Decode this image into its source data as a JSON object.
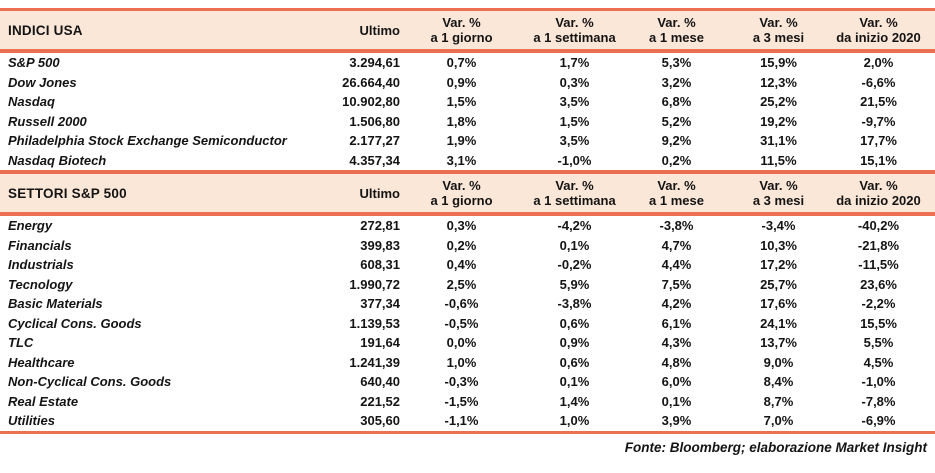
{
  "palette": {
    "accent_line": "#ED6F52",
    "header_band_bg": "#FBE7D8",
    "text": "#141414"
  },
  "column_headers": {
    "ultimo": "Ultimo",
    "var_label": "Var. %",
    "periods": [
      "a 1 giorno",
      "a 1 settimana",
      "a 1 mese",
      "a 3 mesi",
      "da inizio 2020"
    ]
  },
  "sections": [
    {
      "title": "INDICI USA",
      "rows": [
        {
          "name": "S&P 500",
          "ultimo": "3.294,61",
          "vars": [
            "0,7%",
            "1,7%",
            "5,3%",
            "15,9%",
            "2,0%"
          ]
        },
        {
          "name": "Dow Jones",
          "ultimo": "26.664,40",
          "vars": [
            "0,9%",
            "0,3%",
            "3,2%",
            "12,3%",
            "-6,6%"
          ]
        },
        {
          "name": "Nasdaq",
          "ultimo": "10.902,80",
          "vars": [
            "1,5%",
            "3,5%",
            "6,8%",
            "25,2%",
            "21,5%"
          ]
        },
        {
          "name": "Russell 2000",
          "ultimo": "1.506,80",
          "vars": [
            "1,8%",
            "1,5%",
            "5,2%",
            "19,2%",
            "-9,7%"
          ]
        },
        {
          "name": "Philadelphia Stock Exchange Semiconductor",
          "ultimo": "2.177,27",
          "vars": [
            "1,9%",
            "3,5%",
            "9,2%",
            "31,1%",
            "17,7%"
          ]
        },
        {
          "name": "Nasdaq Biotech",
          "ultimo": "4.357,34",
          "vars": [
            "3,1%",
            "-1,0%",
            "0,2%",
            "11,5%",
            "15,1%"
          ]
        }
      ]
    },
    {
      "title": "SETTORI S&P 500",
      "rows": [
        {
          "name": "Energy",
          "ultimo": "272,81",
          "vars": [
            "0,3%",
            "-4,2%",
            "-3,8%",
            "-3,4%",
            "-40,2%"
          ]
        },
        {
          "name": "Financials",
          "ultimo": "399,83",
          "vars": [
            "0,2%",
            "0,1%",
            "4,7%",
            "10,3%",
            "-21,8%"
          ]
        },
        {
          "name": "Industrials",
          "ultimo": "608,31",
          "vars": [
            "0,4%",
            "-0,2%",
            "4,4%",
            "17,2%",
            "-11,5%"
          ]
        },
        {
          "name": "Tecnology",
          "ultimo": "1.990,72",
          "vars": [
            "2,5%",
            "5,9%",
            "7,5%",
            "25,7%",
            "23,6%"
          ]
        },
        {
          "name": "Basic Materials",
          "ultimo": "377,34",
          "vars": [
            "-0,6%",
            "-3,8%",
            "4,2%",
            "17,6%",
            "-2,2%"
          ]
        },
        {
          "name": "Cyclical Cons. Goods",
          "ultimo": "1.139,53",
          "vars": [
            "-0,5%",
            "0,6%",
            "6,1%",
            "24,1%",
            "15,5%"
          ]
        },
        {
          "name": "TLC",
          "ultimo": "191,64",
          "vars": [
            "0,0%",
            "0,9%",
            "4,3%",
            "13,7%",
            "5,5%"
          ]
        },
        {
          "name": "Healthcare",
          "ultimo": "1.241,39",
          "vars": [
            "1,0%",
            "0,6%",
            "4,8%",
            "9,0%",
            "4,5%"
          ]
        },
        {
          "name": "Non-Cyclical Cons. Goods",
          "ultimo": "640,40",
          "vars": [
            "-0,3%",
            "0,1%",
            "6,0%",
            "8,4%",
            "-1,0%"
          ]
        },
        {
          "name": "Real Estate",
          "ultimo": "221,52",
          "vars": [
            "-1,5%",
            "1,4%",
            "0,1%",
            "8,7%",
            "-7,8%"
          ]
        },
        {
          "name": "Utilities",
          "ultimo": "305,60",
          "vars": [
            "-1,1%",
            "1,0%",
            "3,9%",
            "7,0%",
            "-6,9%"
          ]
        }
      ]
    }
  ],
  "footer": {
    "text": "Fonte: Bloomberg; elaborazione Market Insight"
  }
}
